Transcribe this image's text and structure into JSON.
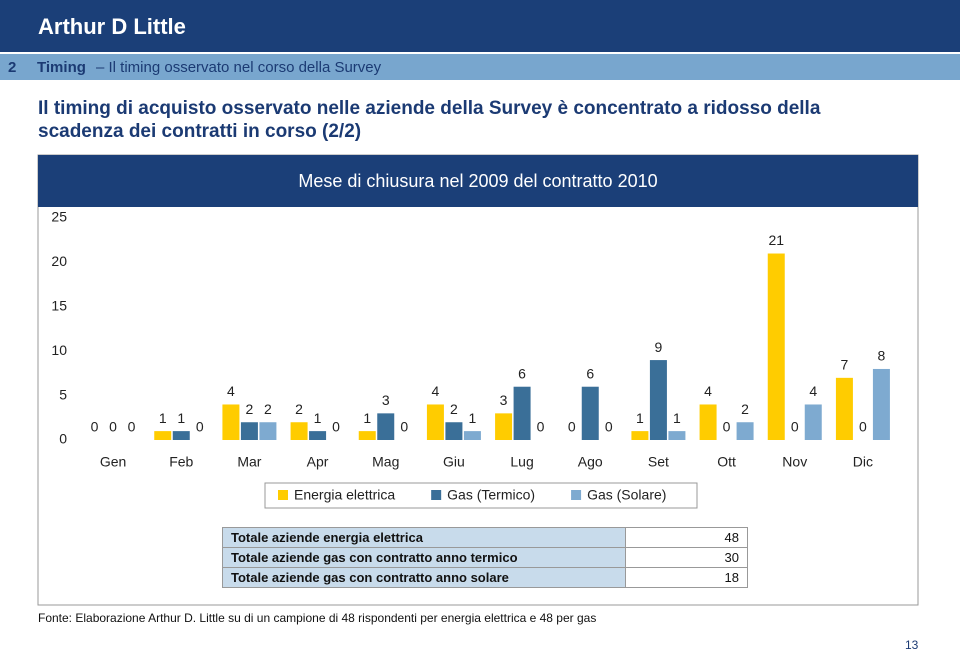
{
  "header": {
    "logo": "Arthur D Little",
    "section_number": "2",
    "section_title": "Timing",
    "section_subtitle": "– Il timing osservato nel corso della Survey"
  },
  "headline": "Il timing di acquisto osservato nelle aziende della Survey è concentrato a ridosso della scadenza dei contratti in corso (2/2)",
  "chart_data": {
    "type": "bar",
    "title": "Mese di chiusura nel 2009 del contratto 2010",
    "categories": [
      "Gen",
      "Feb",
      "Mar",
      "Apr",
      "Mag",
      "Giu",
      "Lug",
      "Ago",
      "Set",
      "Ott",
      "Nov",
      "Dic"
    ],
    "series": [
      {
        "name": "Energia elettrica",
        "color": "#ffcc00",
        "values": [
          0,
          1,
          4,
          2,
          1,
          4,
          3,
          0,
          1,
          4,
          21,
          7
        ]
      },
      {
        "name": "Gas (Termico)",
        "color": "#3a6f98",
        "values": [
          0,
          1,
          2,
          1,
          3,
          2,
          6,
          6,
          9,
          0,
          0,
          0
        ]
      },
      {
        "name": "Gas (Solare)",
        "color": "#7eaad0",
        "values": [
          0,
          0,
          2,
          0,
          0,
          1,
          0,
          0,
          1,
          2,
          4,
          8
        ]
      }
    ],
    "ylim": [
      0,
      25
    ],
    "yticks": [
      0,
      5,
      10,
      15,
      20,
      25
    ],
    "grid": false,
    "data_labels": true
  },
  "table": {
    "rows": [
      [
        "Totale aziende energia elettrica",
        48
      ],
      [
        "Totale aziende gas con contratto anno termico",
        30
      ],
      [
        "Totale aziende gas con contratto anno solare",
        18
      ]
    ]
  },
  "source": "Fonte: Elaborazione Arthur D. Little su di un campione di 48 rispondenti per energia elettrica e 48 per gas",
  "page_number": "13"
}
